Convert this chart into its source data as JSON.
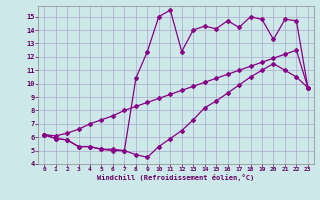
{
  "background_color": "#cce8e8",
  "grid_color": "#aaaacc",
  "line_color": "#880088",
  "marker": "D",
  "markersize": 2.0,
  "linewidth": 0.9,
  "xlabel": "Windchill (Refroidissement éolien,°C)",
  "xlim": [
    -0.5,
    23.5
  ],
  "ylim": [
    4,
    15.8
  ],
  "yticks": [
    4,
    5,
    6,
    7,
    8,
    9,
    10,
    11,
    12,
    13,
    14,
    15
  ],
  "xticks": [
    0,
    1,
    2,
    3,
    4,
    5,
    6,
    7,
    8,
    9,
    10,
    11,
    12,
    13,
    14,
    15,
    16,
    17,
    18,
    19,
    20,
    21,
    22,
    23
  ],
  "line1_x": [
    0,
    1,
    2,
    3,
    4,
    5,
    6,
    7,
    8,
    9,
    10,
    11,
    12,
    13,
    14,
    15,
    16,
    17,
    18,
    19,
    20,
    21,
    22,
    23
  ],
  "line1_y": [
    6.2,
    5.9,
    5.8,
    5.3,
    5.3,
    5.1,
    5.1,
    5.0,
    4.7,
    4.5,
    5.3,
    5.9,
    6.5,
    7.3,
    8.2,
    8.7,
    9.3,
    9.9,
    10.5,
    11.0,
    11.5,
    11.0,
    10.5,
    9.7
  ],
  "line2_x": [
    0,
    1,
    2,
    3,
    4,
    5,
    6,
    7,
    8,
    9,
    10,
    11,
    12,
    13,
    14,
    15,
    16,
    17,
    18,
    19,
    20,
    21,
    22,
    23
  ],
  "line2_y": [
    6.2,
    6.1,
    6.3,
    6.6,
    7.0,
    7.3,
    7.6,
    8.0,
    8.3,
    8.6,
    8.9,
    9.2,
    9.5,
    9.8,
    10.1,
    10.4,
    10.7,
    11.0,
    11.3,
    11.6,
    11.9,
    12.2,
    12.5,
    9.7
  ],
  "line3_x": [
    0,
    1,
    2,
    3,
    4,
    5,
    6,
    7,
    8,
    9,
    10,
    11,
    12,
    13,
    14,
    15,
    16,
    17,
    18,
    19,
    20,
    21,
    22,
    23
  ],
  "line3_y": [
    6.2,
    5.9,
    5.8,
    5.3,
    5.3,
    5.1,
    5.0,
    5.0,
    10.4,
    12.4,
    15.0,
    15.5,
    12.4,
    14.0,
    14.3,
    14.1,
    14.7,
    14.2,
    15.0,
    14.8,
    13.3,
    14.8,
    14.7,
    9.7
  ]
}
